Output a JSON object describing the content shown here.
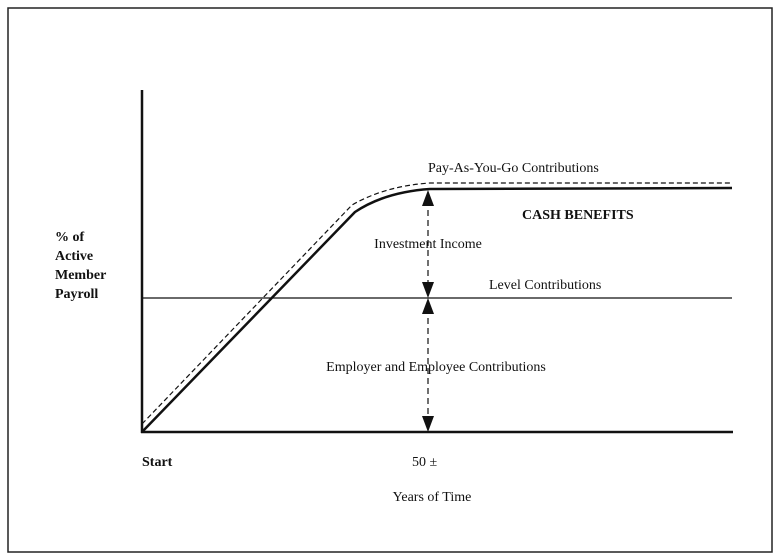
{
  "y_axis_label": [
    "% of",
    "Active",
    "Member",
    "Payroll"
  ],
  "x_axis_label": "Years of Time",
  "x_start": "Start",
  "x_mark": "50 ±",
  "labels": {
    "pay_as_you_go": "Pay-As-You-Go Contributions",
    "cash_benefits": "CASH BENEFITS",
    "investment_income": "Investment Income",
    "level_contributions": "Level Contributions",
    "employer_employee": "Employer and Employee Contributions"
  }
}
